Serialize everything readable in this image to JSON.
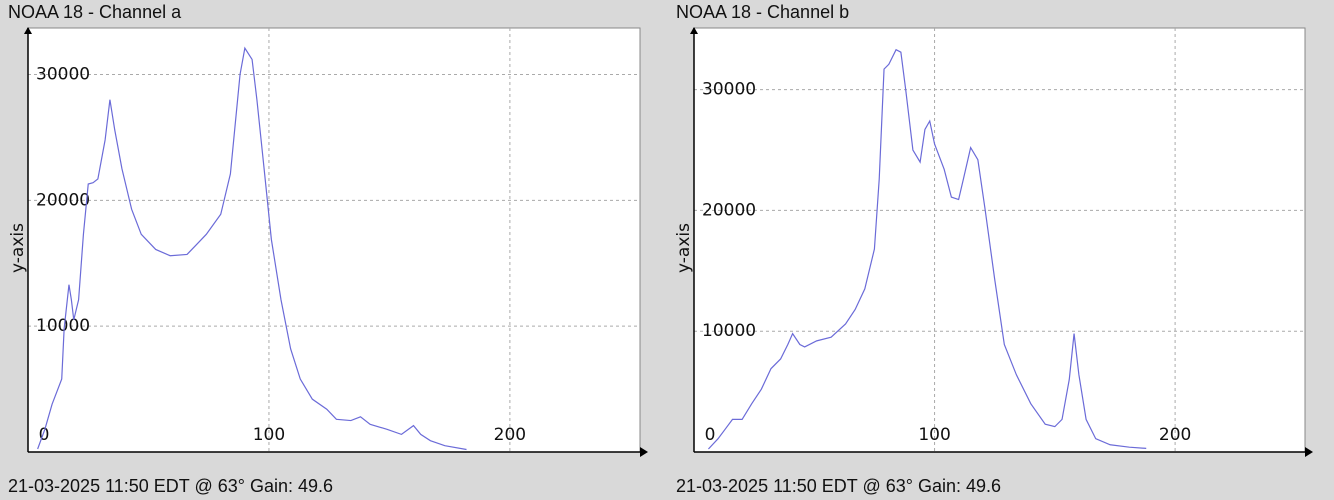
{
  "chart_data": [
    {
      "type": "line",
      "title": "NOAA 18 - Channel a",
      "y_label": "y-axis",
      "caption": "21-03-2025 11:50 EDT @ 63° Gain: 49.6",
      "x": [
        4,
        7,
        10,
        14,
        15,
        17,
        18,
        19,
        21,
        23,
        25,
        27,
        29,
        32,
        34,
        36,
        39,
        43,
        47,
        53,
        59,
        66,
        70,
        74,
        80,
        84,
        88,
        90,
        93,
        95,
        98,
        101,
        105,
        109,
        113,
        118,
        124,
        128,
        134,
        138,
        142,
        149,
        155,
        160,
        163,
        167,
        173,
        182
      ],
      "series": [
        {
          "name": "Channel a",
          "color": "#6b6bd8",
          "values": [
            240,
            1800,
            3800,
            5800,
            9800,
            13300,
            12100,
            10500,
            12100,
            17300,
            21300,
            21400,
            21700,
            24800,
            28000,
            25600,
            22500,
            19300,
            17300,
            16100,
            15600,
            15700,
            16500,
            17300,
            18900,
            22100,
            30000,
            32100,
            31200,
            28000,
            22500,
            16900,
            12100,
            8200,
            5800,
            4200,
            3400,
            2600,
            2500,
            2800,
            2200,
            1800,
            1400,
            2100,
            1400,
            900,
            500,
            200
          ]
        }
      ],
      "xlim": [
        0,
        254
      ],
      "ylim": [
        0,
        33700
      ],
      "xticks": [
        0,
        100,
        200
      ],
      "yticks": [
        0,
        10000,
        20000,
        30000
      ],
      "grid": true
    },
    {
      "type": "line",
      "title": "NOAA 18 - Channel b",
      "y_label": "y-axis",
      "caption": "21-03-2025 11:50 EDT @ 63° Gain: 49.6",
      "x": [
        6,
        10,
        13,
        16,
        20,
        24,
        28,
        32,
        36,
        39,
        41,
        44,
        46,
        51,
        57,
        63,
        67,
        71,
        75,
        77,
        79,
        81,
        84,
        86,
        88,
        91,
        94,
        96,
        98,
        100,
        104,
        107,
        110,
        112,
        115,
        118,
        121,
        125,
        129,
        134,
        140,
        146,
        150,
        153,
        156,
        158,
        160,
        163,
        167,
        173,
        181,
        188
      ],
      "series": [
        {
          "name": "Channel b",
          "color": "#6b6bd8",
          "values": [
            250,
            1100,
            1900,
            2700,
            2700,
            4000,
            5200,
            6900,
            7700,
            8900,
            9800,
            8900,
            8700,
            9200,
            9500,
            10600,
            11800,
            13500,
            16800,
            22600,
            31700,
            32100,
            33300,
            33100,
            30000,
            25000,
            24000,
            26700,
            27400,
            25500,
            23400,
            21100,
            20900,
            22600,
            25200,
            24200,
            20100,
            14300,
            8900,
            6400,
            4000,
            2300,
            2100,
            2700,
            6000,
            9800,
            6400,
            2700,
            1100,
            600,
            400,
            300
          ]
        }
      ],
      "xlim": [
        0,
        254
      ],
      "ylim": [
        0,
        35100
      ],
      "xticks": [
        0,
        100,
        200
      ],
      "yticks": [
        0,
        10000,
        20000,
        30000
      ],
      "grid": true
    }
  ]
}
